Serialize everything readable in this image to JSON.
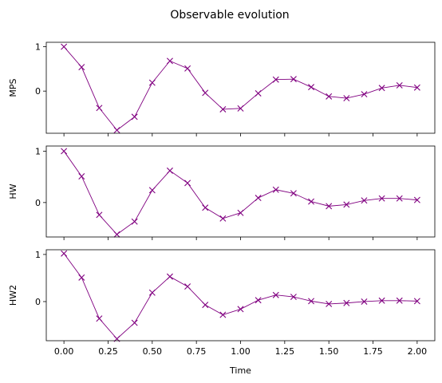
{
  "figure": {
    "title": "Observable evolution"
  },
  "chart_data": [
    {
      "type": "line",
      "ylabel": "MPS",
      "xlabel": "",
      "x": [
        0.0,
        0.1,
        0.2,
        0.3,
        0.4,
        0.5,
        0.6,
        0.7,
        0.8,
        0.9,
        1.0,
        1.1,
        1.2,
        1.3,
        1.4,
        1.5,
        1.6,
        1.7,
        1.8,
        1.9,
        2.0
      ],
      "series": [
        {
          "values": [
            1.0,
            0.54,
            -0.38,
            -0.88,
            -0.58,
            0.19,
            0.68,
            0.51,
            -0.04,
            -0.41,
            -0.39,
            -0.05,
            0.26,
            0.27,
            0.09,
            -0.12,
            -0.16,
            -0.07,
            0.07,
            0.13,
            0.08
          ],
          "color": "#800080",
          "marker": "x"
        }
      ],
      "xlim": [
        -0.1,
        2.1
      ],
      "ylim": [
        -0.95,
        1.1
      ],
      "yticks": [
        "1",
        "0"
      ],
      "xticks": [
        "",
        "",
        "",
        "",
        "",
        "",
        "",
        "",
        ""
      ]
    },
    {
      "type": "line",
      "ylabel": "HW",
      "xlabel": "",
      "x": [
        0.0,
        0.1,
        0.2,
        0.3,
        0.4,
        0.5,
        0.6,
        0.7,
        0.8,
        0.9,
        1.0,
        1.1,
        1.2,
        1.3,
        1.4,
        1.5,
        1.6,
        1.7,
        1.8,
        1.9,
        2.0
      ],
      "series": [
        {
          "values": [
            1.0,
            0.51,
            -0.24,
            -0.62,
            -0.37,
            0.24,
            0.62,
            0.38,
            -0.1,
            -0.31,
            -0.2,
            0.09,
            0.25,
            0.18,
            0.02,
            -0.07,
            -0.04,
            0.04,
            0.08,
            0.08,
            0.05
          ],
          "color": "#800080",
          "marker": "x"
        }
      ],
      "xlim": [
        -0.1,
        2.1
      ],
      "ylim": [
        -0.67,
        1.1
      ],
      "yticks": [
        "1",
        "0"
      ],
      "xticks": [
        "",
        "",
        "",
        "",
        "",
        "",
        "",
        "",
        ""
      ]
    },
    {
      "type": "line",
      "ylabel": "HW2",
      "xlabel": "Time",
      "x": [
        0.0,
        0.1,
        0.2,
        0.3,
        0.4,
        0.5,
        0.6,
        0.7,
        0.8,
        0.9,
        1.0,
        1.1,
        1.2,
        1.3,
        1.4,
        1.5,
        1.6,
        1.7,
        1.8,
        1.9,
        2.0
      ],
      "series": [
        {
          "values": [
            1.02,
            0.51,
            -0.36,
            -0.79,
            -0.45,
            0.19,
            0.53,
            0.32,
            -0.07,
            -0.28,
            -0.16,
            0.03,
            0.14,
            0.1,
            0.01,
            -0.05,
            -0.03,
            0.0,
            0.02,
            0.02,
            0.01
          ],
          "color": "#800080",
          "marker": "x"
        }
      ],
      "xlim": [
        -0.1,
        2.1
      ],
      "ylim": [
        -0.83,
        1.1
      ],
      "yticks": [
        "1",
        "0"
      ],
      "xticks": [
        "0.00",
        "0.25",
        "0.50",
        "0.75",
        "1.00",
        "1.25",
        "1.50",
        "1.75",
        "2.00"
      ]
    }
  ]
}
